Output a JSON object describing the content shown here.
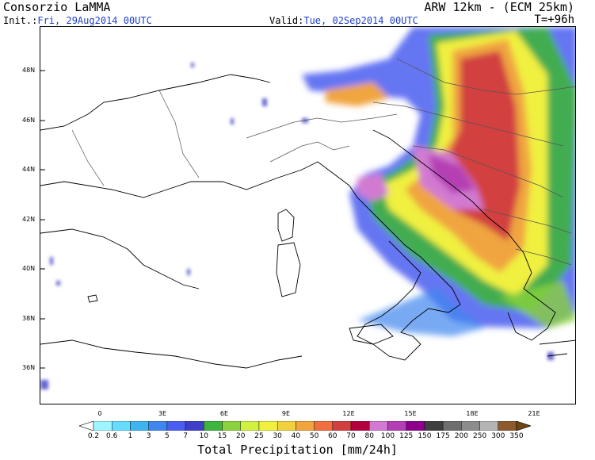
{
  "header": {
    "title_left": "Consorzio LaMMA",
    "title_right": "ARW 12km - (ECM 25km)",
    "init_label": "Init.:",
    "init_value": "Fri, 29Aug2014 00UTC",
    "valid_label": "Valid:",
    "valid_value": "Tue, 02Sep2014 00UTC",
    "lead_time": "T=+96h"
  },
  "map": {
    "lat_labels": [
      "48N",
      "46N",
      "44N",
      "42N",
      "40N",
      "38N",
      "36N"
    ],
    "lon_labels": [
      "0",
      "3E",
      "6E",
      "9E",
      "12E",
      "15E",
      "18E",
      "21E"
    ]
  },
  "legend": {
    "title": "Total Precipitation [mm/24h]",
    "thresholds": [
      "0.2",
      "0.6",
      "1",
      "3",
      "5",
      "7",
      "10",
      "15",
      "20",
      "25",
      "30",
      "40",
      "50",
      "60",
      "70",
      "80",
      "100",
      "125",
      "150",
      "175",
      "200",
      "250",
      "300",
      "350"
    ],
    "colors": [
      "#9ff5ff",
      "#66ddff",
      "#3fb4f0",
      "#3f86f0",
      "#4a5ef0",
      "#3f3fc8",
      "#3fb43f",
      "#8cd23f",
      "#d2f03f",
      "#f0f03f",
      "#f0d23f",
      "#f0a53f",
      "#f06e3f",
      "#d23f3f",
      "#b4003f",
      "#d27ad2",
      "#b43fb4",
      "#8c008c",
      "#3f3f3f",
      "#6e6e6e",
      "#8c8c8c",
      "#b4b4b4",
      "#8c5a2d",
      "#6e4614"
    ]
  }
}
